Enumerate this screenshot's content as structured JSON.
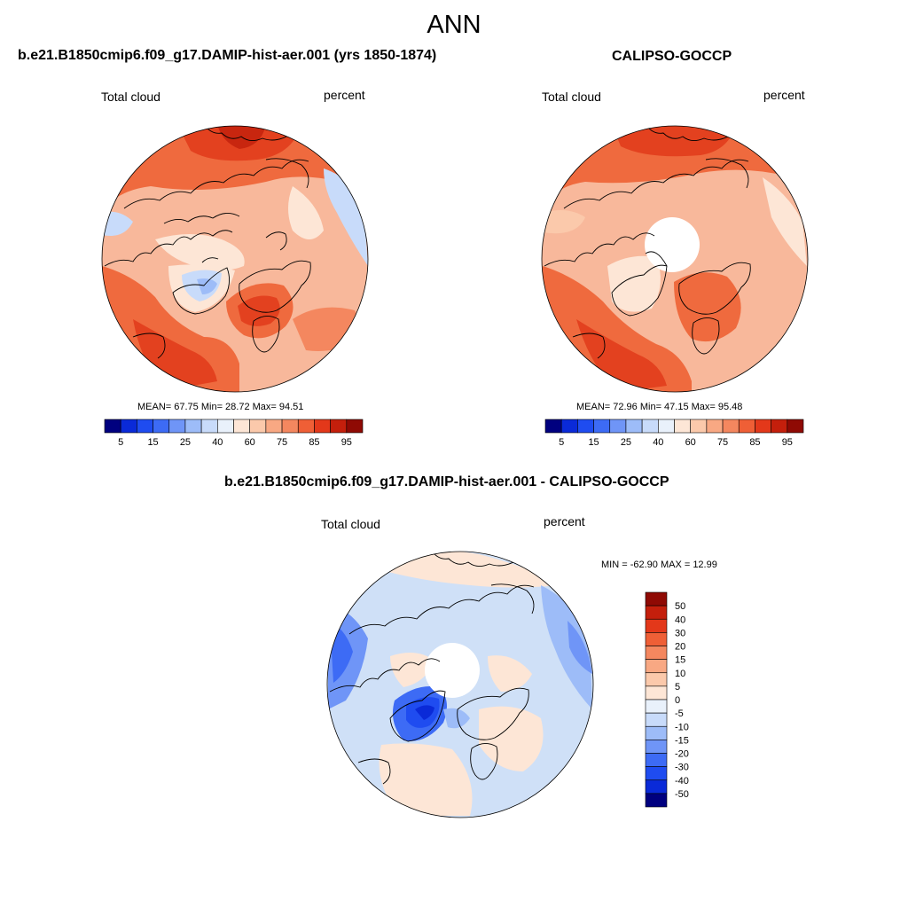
{
  "main_title": "ANN",
  "panels": [
    {
      "title": "b.e21.B1850cmip6.f09_g17.DAMIP-hist-aer.001 (yrs 1850-1874)",
      "left_label": "Total cloud",
      "right_label": "percent",
      "stats": "MEAN=  67.75  Min=  28.72  Max=  94.51"
    },
    {
      "title": "CALIPSO-GOCCP",
      "left_label": "Total cloud",
      "right_label": "percent",
      "stats": "MEAN=  72.96  Min=  47.15  Max=  95.48"
    },
    {
      "title": "b.e21.B1850cmip6.f09_g17.DAMIP-hist-aer.001 - CALIPSO-GOCCP",
      "left_label": "Total cloud",
      "right_label": "percent",
      "stats": "MIN = -62.90 MAX =  12.99"
    }
  ],
  "abs_colorbar": {
    "ticks": [
      "5",
      "15",
      "25",
      "40",
      "60",
      "75",
      "85",
      "95"
    ],
    "colors": [
      "#00007f",
      "#0a2ad8",
      "#1f4cf0",
      "#3d6bf5",
      "#6f95f7",
      "#9dbcf8",
      "#c8dbfa",
      "#e9f1fb",
      "#fde6d6",
      "#fbc9ab",
      "#f8a883",
      "#f4875f",
      "#ef5f36",
      "#e3381a",
      "#c41f0c",
      "#8f0a04"
    ]
  },
  "diff_colorbar": {
    "labels": [
      "50",
      "40",
      "30",
      "20",
      "15",
      "10",
      "5",
      "0",
      "-5",
      "-10",
      "-15",
      "-20",
      "-30",
      "-40",
      "-50"
    ],
    "colors": [
      "#8f0a04",
      "#c41f0c",
      "#e3381a",
      "#ef5f36",
      "#f4875f",
      "#f8a883",
      "#fbc9ab",
      "#fde6d6",
      "#e9f1fb",
      "#c8dbfa",
      "#9dbcf8",
      "#6f95f7",
      "#3d6bf5",
      "#1f4cf0",
      "#0a2ad8",
      "#00007f"
    ]
  },
  "palette": {
    "map_base_pos": "#f6b597",
    "map_base_diff": "#cfe0f7",
    "coast": "#000000"
  }
}
